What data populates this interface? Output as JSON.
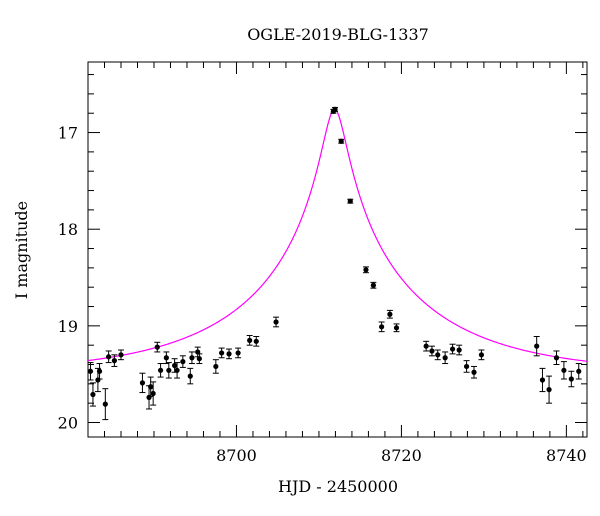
{
  "chart_data": {
    "type": "scatter",
    "title": "OGLE-2019-BLG-1337",
    "xlabel": "HJD - 2450000",
    "ylabel": "I magnitude",
    "xlim": [
      8682,
      8742.5
    ],
    "ylim": [
      20.15,
      16.27
    ],
    "y_inverted": true,
    "grid": false,
    "x_major_ticks": [
      8700,
      8720,
      8740
    ],
    "x_tick_labels": [
      "8700",
      "8720",
      "8740"
    ],
    "y_major_ticks": [
      17,
      18,
      19,
      20
    ],
    "y_tick_labels": [
      "17",
      "18",
      "19",
      "20"
    ],
    "colors": {
      "data": "#000000",
      "model": "#ff00ff",
      "axes": "#000000"
    },
    "series": [
      {
        "kind": "points_with_errorbars",
        "x": [
          8682.3,
          8682.6,
          8683.2,
          8683.4,
          8684.1,
          8684.5,
          8685.2,
          8686.0,
          8688.6,
          8689.4,
          8689.6,
          8689.9,
          8690.4,
          8690.8,
          8691.5,
          8691.8,
          8692.5,
          8692.8,
          8693.5,
          8694.4,
          8694.6,
          8695.3,
          8695.5,
          8697.5,
          8698.2,
          8699.1,
          8700.2,
          8701.6,
          8702.4,
          8704.8,
          8711.75,
          8711.95,
          8712.7,
          8713.8,
          8715.7,
          8716.6,
          8717.6,
          8718.6,
          8719.4,
          8723.0,
          8723.7,
          8724.4,
          8725.3,
          8726.2,
          8727.0,
          8727.9,
          8728.8,
          8729.7,
          8736.4,
          8737.1,
          8737.9,
          8738.8,
          8739.7,
          8740.6,
          8741.5
        ],
        "y": [
          19.47,
          19.71,
          19.56,
          19.47,
          19.81,
          19.32,
          19.36,
          19.3,
          19.59,
          19.74,
          19.63,
          19.7,
          19.22,
          19.46,
          19.33,
          19.46,
          19.41,
          19.46,
          19.37,
          19.52,
          19.33,
          19.27,
          19.34,
          19.42,
          19.28,
          19.29,
          19.28,
          19.15,
          19.16,
          18.96,
          16.78,
          16.76,
          17.09,
          17.71,
          18.42,
          18.58,
          19.01,
          18.88,
          19.02,
          19.21,
          19.26,
          19.3,
          19.33,
          19.24,
          19.25,
          19.42,
          19.48,
          19.3,
          19.21,
          19.56,
          19.66,
          19.33,
          19.46,
          19.55,
          19.47
        ],
        "yerr": [
          0.09,
          0.12,
          0.12,
          0.08,
          0.16,
          0.06,
          0.06,
          0.05,
          0.1,
          0.12,
          0.1,
          0.12,
          0.05,
          0.07,
          0.06,
          0.08,
          0.07,
          0.08,
          0.06,
          0.08,
          0.06,
          0.05,
          0.05,
          0.07,
          0.05,
          0.05,
          0.05,
          0.05,
          0.05,
          0.05,
          0.02,
          0.02,
          0.02,
          0.02,
          0.03,
          0.03,
          0.05,
          0.04,
          0.04,
          0.05,
          0.05,
          0.05,
          0.06,
          0.05,
          0.05,
          0.06,
          0.06,
          0.05,
          0.1,
          0.12,
          0.14,
          0.07,
          0.09,
          0.08,
          0.08
        ]
      },
      {
        "kind": "model_curve",
        "peak_time": 8711.9,
        "baseline_mag": 19.5,
        "peak_mag": 16.76,
        "u0": 0.064,
        "tE": 21.0
      }
    ]
  }
}
